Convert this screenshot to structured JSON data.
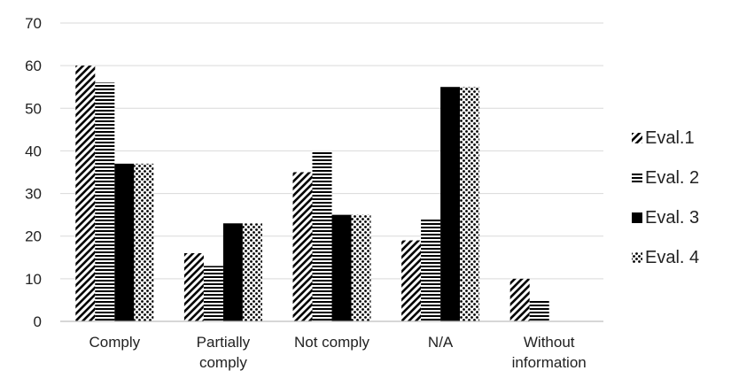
{
  "chart_data": {
    "type": "bar",
    "categories": [
      "Comply",
      "Partially comply",
      "Not comply",
      "N/A",
      "Without information"
    ],
    "category_lines": [
      [
        "Comply"
      ],
      [
        "Partially",
        "comply"
      ],
      [
        "Not comply"
      ],
      [
        "N/A"
      ],
      [
        "Without",
        "information"
      ]
    ],
    "series": [
      {
        "name": "Eval.1",
        "values": [
          60,
          16,
          35,
          19,
          10
        ],
        "pattern": "diagonal-hatch"
      },
      {
        "name": "Eval. 2",
        "values": [
          56,
          13,
          40,
          24,
          5
        ],
        "pattern": "horizontal-lines"
      },
      {
        "name": "Eval. 3",
        "values": [
          37,
          23,
          25,
          55,
          0
        ],
        "pattern": "solid"
      },
      {
        "name": "Eval. 4",
        "values": [
          37,
          23,
          25,
          55,
          0
        ],
        "pattern": "dots"
      }
    ],
    "ylim": [
      0,
      70
    ],
    "yticks": [
      0,
      10,
      20,
      30,
      40,
      50,
      60,
      70
    ],
    "grid": true,
    "legend": "right",
    "colors": {
      "ink": "#000000",
      "grid": "#d9d9d9",
      "axis": "#bfbfbf",
      "text": "#222222"
    }
  }
}
